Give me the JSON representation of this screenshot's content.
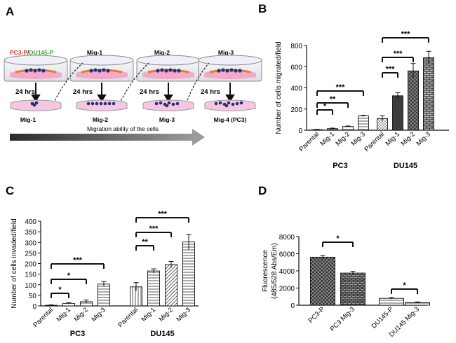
{
  "panels": {
    "A": {
      "letter": "A",
      "header_pc3": "PC3-P",
      "header_slash": "/",
      "header_du145": "DU145-P",
      "top_labels": [
        "Mig-1",
        "Mig-2",
        "Mig-3"
      ],
      "time_label": "24 hrs",
      "bottom_labels": [
        "Mig-1",
        "Mig-2",
        "Mig-3",
        "Mig-4 (PC3)"
      ],
      "arrow_label": "Migration ability of the cells",
      "colors": {
        "pc3": "#e8332a",
        "du145": "#3aa935",
        "dish": "#f5c8e2",
        "cells": "#2a2f7a"
      }
    },
    "B": {
      "letter": "B"
    },
    "C": {
      "letter": "C"
    },
    "D": {
      "letter": "D"
    }
  },
  "chart_data": [
    {
      "panel": "B",
      "type": "bar",
      "ylabel": "Number of cells migrated/field",
      "ylim": [
        0,
        800
      ],
      "yticks": [
        0,
        200,
        400,
        600,
        800
      ],
      "groups": [
        {
          "name": "PC3",
          "categories": [
            "Parental",
            "Mig-1",
            "Mig-2",
            "Mig-3"
          ],
          "values": [
            5,
            15,
            35,
            135
          ],
          "errors": [
            3,
            5,
            5,
            5
          ]
        },
        {
          "name": "DU145",
          "categories": [
            "Parental",
            "Mig-1",
            "Mig-2",
            "Mig-3"
          ],
          "values": [
            110,
            325,
            560,
            685
          ],
          "errors": [
            25,
            30,
            70,
            60
          ]
        }
      ],
      "significance": [
        {
          "group": 0,
          "from": 0,
          "to": 1,
          "label": "*"
        },
        {
          "group": 0,
          "from": 0,
          "to": 2,
          "label": "**"
        },
        {
          "group": 0,
          "from": 0,
          "to": 3,
          "label": "***"
        },
        {
          "group": 1,
          "from": 0,
          "to": 1,
          "label": "***"
        },
        {
          "group": 1,
          "from": 0,
          "to": 2,
          "label": "***"
        },
        {
          "group": 1,
          "from": 0,
          "to": 3,
          "label": "***"
        }
      ]
    },
    {
      "panel": "C",
      "type": "bar",
      "ylabel": "Number of cells invaded/field",
      "ylim": [
        0,
        400
      ],
      "yticks": [
        0,
        50,
        100,
        150,
        200,
        250,
        300,
        350,
        400
      ],
      "groups": [
        {
          "name": "PC3",
          "categories": [
            "Parental",
            "Mig-1",
            "Mig-2",
            "Mig-3"
          ],
          "values": [
            3,
            12,
            20,
            103
          ],
          "errors": [
            2,
            3,
            8,
            12
          ]
        },
        {
          "name": "DU145",
          "categories": [
            "Parental",
            "Mig-1",
            "Mig-2",
            "Mig-3"
          ],
          "values": [
            90,
            165,
            195,
            302
          ],
          "errors": [
            20,
            10,
            15,
            35
          ]
        }
      ],
      "significance": [
        {
          "group": 0,
          "from": 0,
          "to": 1,
          "label": "*"
        },
        {
          "group": 0,
          "from": 0,
          "to": 2,
          "label": "*"
        },
        {
          "group": 0,
          "from": 0,
          "to": 3,
          "label": "***"
        },
        {
          "group": 1,
          "from": 0,
          "to": 1,
          "label": "**"
        },
        {
          "group": 1,
          "from": 0,
          "to": 2,
          "label": "***"
        },
        {
          "group": 1,
          "from": 0,
          "to": 3,
          "label": "***"
        }
      ]
    },
    {
      "panel": "D",
      "type": "bar",
      "ylabel_line1": "Fluorescence",
      "ylabel_line2": "(485/528 Abs/Em)",
      "ylim": [
        0,
        8000
      ],
      "yticks": [
        0,
        2000,
        4000,
        6000,
        8000
      ],
      "categories": [
        "PC3-P",
        "PC3 Mig-3",
        "DU145-P",
        "DU145 Mig-3"
      ],
      "values": [
        5600,
        3750,
        800,
        300
      ],
      "errors": [
        200,
        200,
        100,
        80
      ],
      "significance": [
        {
          "from": 0,
          "to": 1,
          "label": "*"
        },
        {
          "from": 2,
          "to": 3,
          "label": "*"
        }
      ]
    }
  ]
}
